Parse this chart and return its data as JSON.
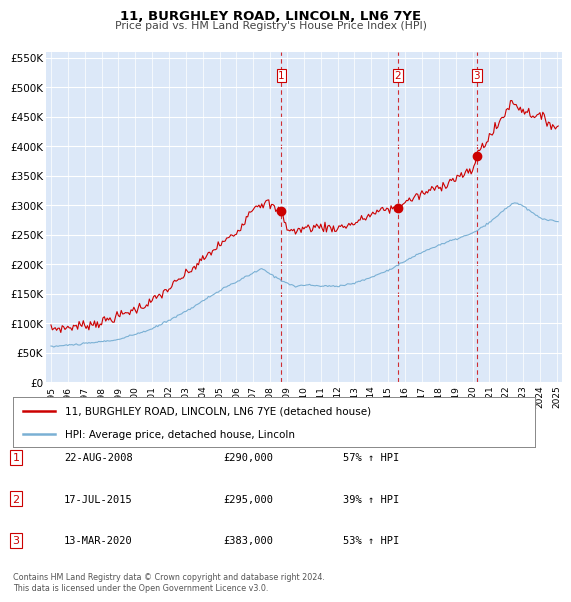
{
  "title": "11, BURGHLEY ROAD, LINCOLN, LN6 7YE",
  "subtitle": "Price paid vs. HM Land Registry's House Price Index (HPI)",
  "ylim": [
    0,
    560000
  ],
  "yticks": [
    0,
    50000,
    100000,
    150000,
    200000,
    250000,
    300000,
    350000,
    400000,
    450000,
    500000,
    550000
  ],
  "ytick_labels": [
    "£0",
    "£50K",
    "£100K",
    "£150K",
    "£200K",
    "£250K",
    "£300K",
    "£350K",
    "£400K",
    "£450K",
    "£500K",
    "£550K"
  ],
  "plot_bg_color": "#dce8f8",
  "legend_label_red": "11, BURGHLEY ROAD, LINCOLN, LN6 7YE (detached house)",
  "legend_label_blue": "HPI: Average price, detached house, Lincoln",
  "sale_labels": [
    "1",
    "2",
    "3"
  ],
  "sale_date_strs": [
    "22-AUG-2008",
    "17-JUL-2015",
    "13-MAR-2020"
  ],
  "sale_price_strs": [
    "£290,000",
    "£295,000",
    "£383,000"
  ],
  "sale_hpi_strs": [
    "57% ↑ HPI",
    "39% ↑ HPI",
    "53% ↑ HPI"
  ],
  "footer": "Contains HM Land Registry data © Crown copyright and database right 2024.\nThis data is licensed under the Open Government Licence v3.0.",
  "red_color": "#cc0000",
  "blue_color": "#7ab0d4",
  "vline_color": "#cc0000"
}
